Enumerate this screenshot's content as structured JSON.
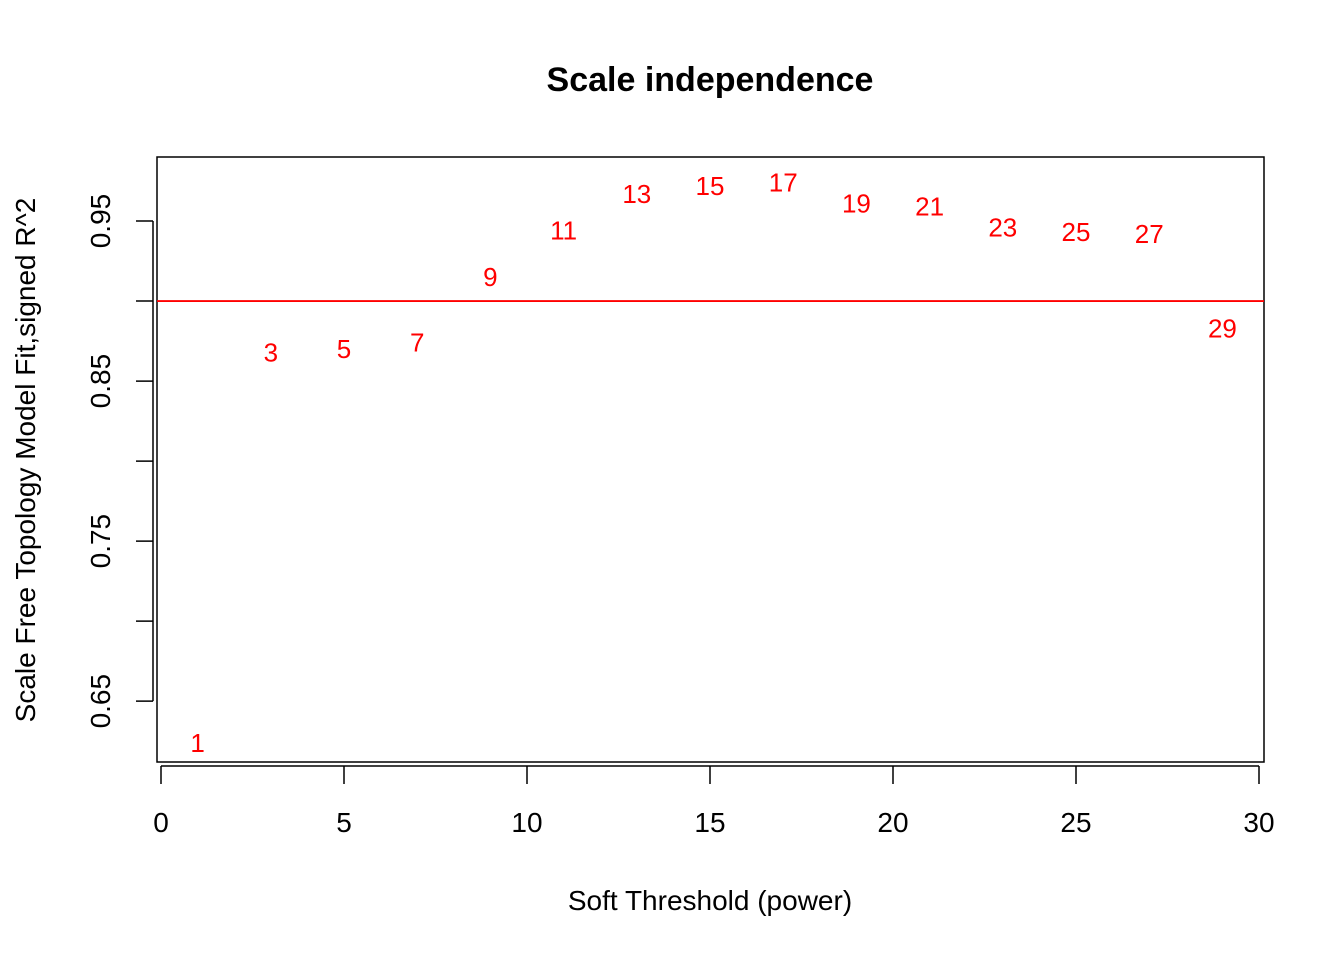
{
  "chart_data": {
    "type": "scatter",
    "title": "Scale independence",
    "xlabel": "Soft Threshold (power)",
    "ylabel": "Scale Free Topology Model Fit,signed R^2",
    "xlim": [
      0,
      30
    ],
    "ylim": [
      0.612,
      0.99
    ],
    "xticks": [
      0,
      5,
      10,
      15,
      20,
      25,
      30
    ],
    "yticks": [
      0.65,
      0.7,
      0.75,
      0.8,
      0.85,
      0.9,
      0.95
    ],
    "ytick_labels": [
      "0.65",
      "",
      "0.75",
      "",
      "0.85",
      "",
      "0.95"
    ],
    "grid": false,
    "point_color": "#ff0000",
    "points": [
      {
        "label": "1",
        "x": 1,
        "y": 0.624
      },
      {
        "label": "3",
        "x": 3,
        "y": 0.868
      },
      {
        "label": "5",
        "x": 5,
        "y": 0.87
      },
      {
        "label": "7",
        "x": 7,
        "y": 0.874
      },
      {
        "label": "9",
        "x": 9,
        "y": 0.915
      },
      {
        "label": "11",
        "x": 11,
        "y": 0.944
      },
      {
        "label": "13",
        "x": 13,
        "y": 0.967
      },
      {
        "label": "15",
        "x": 15,
        "y": 0.972
      },
      {
        "label": "17",
        "x": 17,
        "y": 0.974
      },
      {
        "label": "19",
        "x": 19,
        "y": 0.961
      },
      {
        "label": "21",
        "x": 21,
        "y": 0.959
      },
      {
        "label": "23",
        "x": 23,
        "y": 0.946
      },
      {
        "label": "25",
        "x": 25,
        "y": 0.943
      },
      {
        "label": "27",
        "x": 27,
        "y": 0.942
      },
      {
        "label": "29",
        "x": 29,
        "y": 0.883
      }
    ],
    "reference_line": {
      "y": 0.9,
      "color": "#ff0000"
    }
  }
}
